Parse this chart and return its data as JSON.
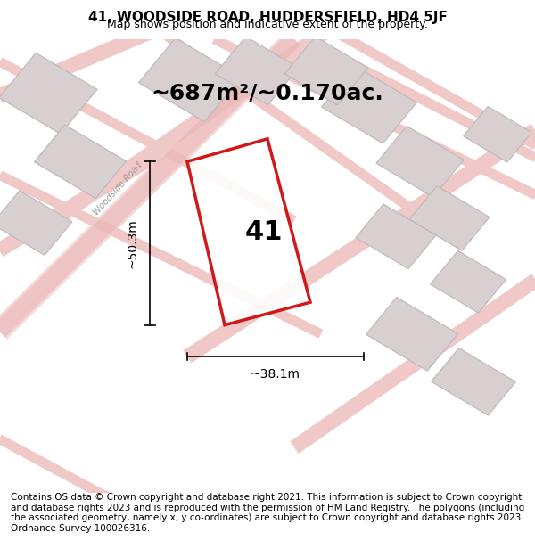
{
  "title": "41, WOODSIDE ROAD, HUDDERSFIELD, HD4 5JF",
  "subtitle": "Map shows position and indicative extent of the property.",
  "area_text": "~687m²/~0.170ac.",
  "dim_width": "~38.1m",
  "dim_height": "~50.3m",
  "label_41": "41",
  "road_label": "Woodside Road",
  "footer": "Contains OS data © Crown copyright and database right 2021. This information is subject to Crown copyright and database rights 2023 and is reproduced with the permission of HM Land Registry. The polygons (including the associated geometry, namely x, y co-ordinates) are subject to Crown copyright and database rights 2023 Ordnance Survey 100026316.",
  "bg_color": "#f5f0f0",
  "map_bg": "#ffffff",
  "road_color": "#f0c8c8",
  "building_color": "#d8d0d0",
  "building_edge": "#c0b8b8",
  "plot_color": "#ffffff",
  "plot_edge": "#cc0000",
  "title_fontsize": 11,
  "subtitle_fontsize": 9,
  "area_fontsize": 18,
  "label_fontsize": 22,
  "footer_fontsize": 7.5,
  "road_label_fontsize": 7,
  "dim_fontsize": 10
}
